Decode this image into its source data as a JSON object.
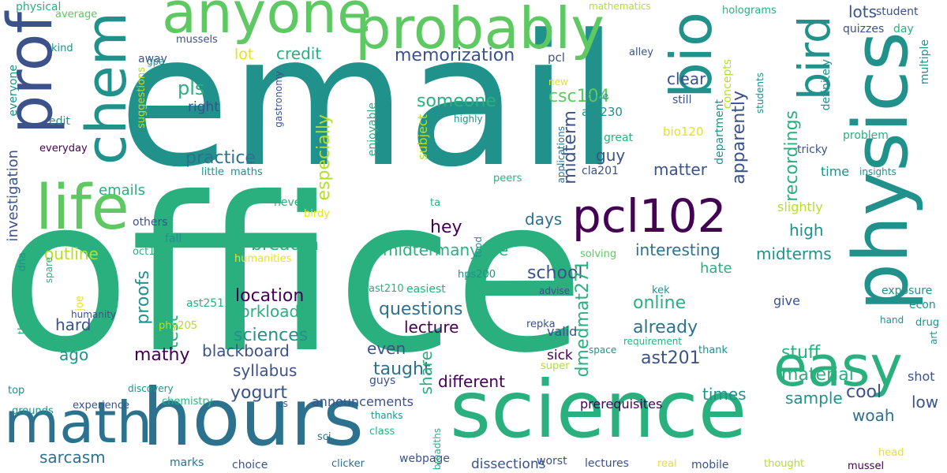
{
  "palette": {
    "dark_purple": "#440154",
    "indigo": "#3b528b",
    "teal": "#21918c",
    "blue_teal": "#2c728e",
    "green": "#2ab07f",
    "light_green": "#5ec962",
    "lime": "#b5de2b",
    "yellow": "#e6e419"
  },
  "words": [
    "email",
    "office",
    "science",
    "hours",
    "physics",
    "anyone",
    "probably",
    "prof",
    "chem",
    "life",
    "math",
    "easy",
    "bio",
    "bird",
    "pcl102",
    "memorization",
    "pls",
    "lot",
    "credit",
    "csc104",
    "someone",
    "apparently",
    "recordings",
    "lots",
    "clear",
    "midterm",
    "act230",
    "bio120",
    "practice",
    "especially",
    "guy",
    "matter",
    "emails",
    "hey",
    "days",
    "outline",
    "breadth",
    "midtermanyone",
    "interesting",
    "midterms",
    "high",
    "school",
    "location",
    "questions",
    "lecture",
    "online",
    "already",
    "proofs",
    "test",
    "workload",
    "hard",
    "ago",
    "sciences",
    "blackboard",
    "hate",
    "mathy",
    "syllabus",
    "taught",
    "even",
    "dmedmat271",
    "ast201",
    "stuff",
    "material",
    "yogurt",
    "cool",
    "times",
    "share",
    "different",
    "announcements",
    "sample",
    "woah",
    "low",
    "sarcasm",
    "investigation",
    "everyone",
    "physical",
    "average",
    "kind",
    "away",
    "right",
    "edit",
    "everyday",
    "others",
    "fall",
    "dna",
    "oct11",
    "never",
    "birdy",
    "humanities",
    "ast251",
    "ast210",
    "easiest",
    "hps200",
    "humanity",
    "joe",
    "grounds",
    "top",
    "experience",
    "chemistry",
    "discovery",
    "cs",
    "sci",
    "class",
    "webpage",
    "worst",
    "clicker",
    "marks",
    "choice",
    "lectures",
    "real",
    "mobile",
    "mussel",
    "thought",
    "dissections",
    "head",
    "exposure",
    "econ",
    "drug",
    "hand",
    "art",
    "requirement",
    "give",
    "thank",
    "kek",
    "valid",
    "sick",
    "super",
    "space",
    "advise",
    "repka",
    "phy205",
    "guys",
    "thanks",
    "breadths",
    "prerequisites",
    "shot",
    "mathematics",
    "holograms",
    "student",
    "quizzes",
    "day",
    "multiple",
    "definitely",
    "problem",
    "tricky",
    "time",
    "insights",
    "students",
    "department",
    "concepts",
    "still",
    "alley",
    "code",
    "great",
    "cla201",
    "applications",
    "peers",
    "highly",
    "new",
    "pcl",
    "mussels",
    "gpa",
    "gastronomy",
    "suggestions",
    "maths",
    "little",
    "enjoyable",
    "subject",
    "ta",
    "food",
    "solving",
    "slightly",
    "things",
    "spare"
  ]
}
